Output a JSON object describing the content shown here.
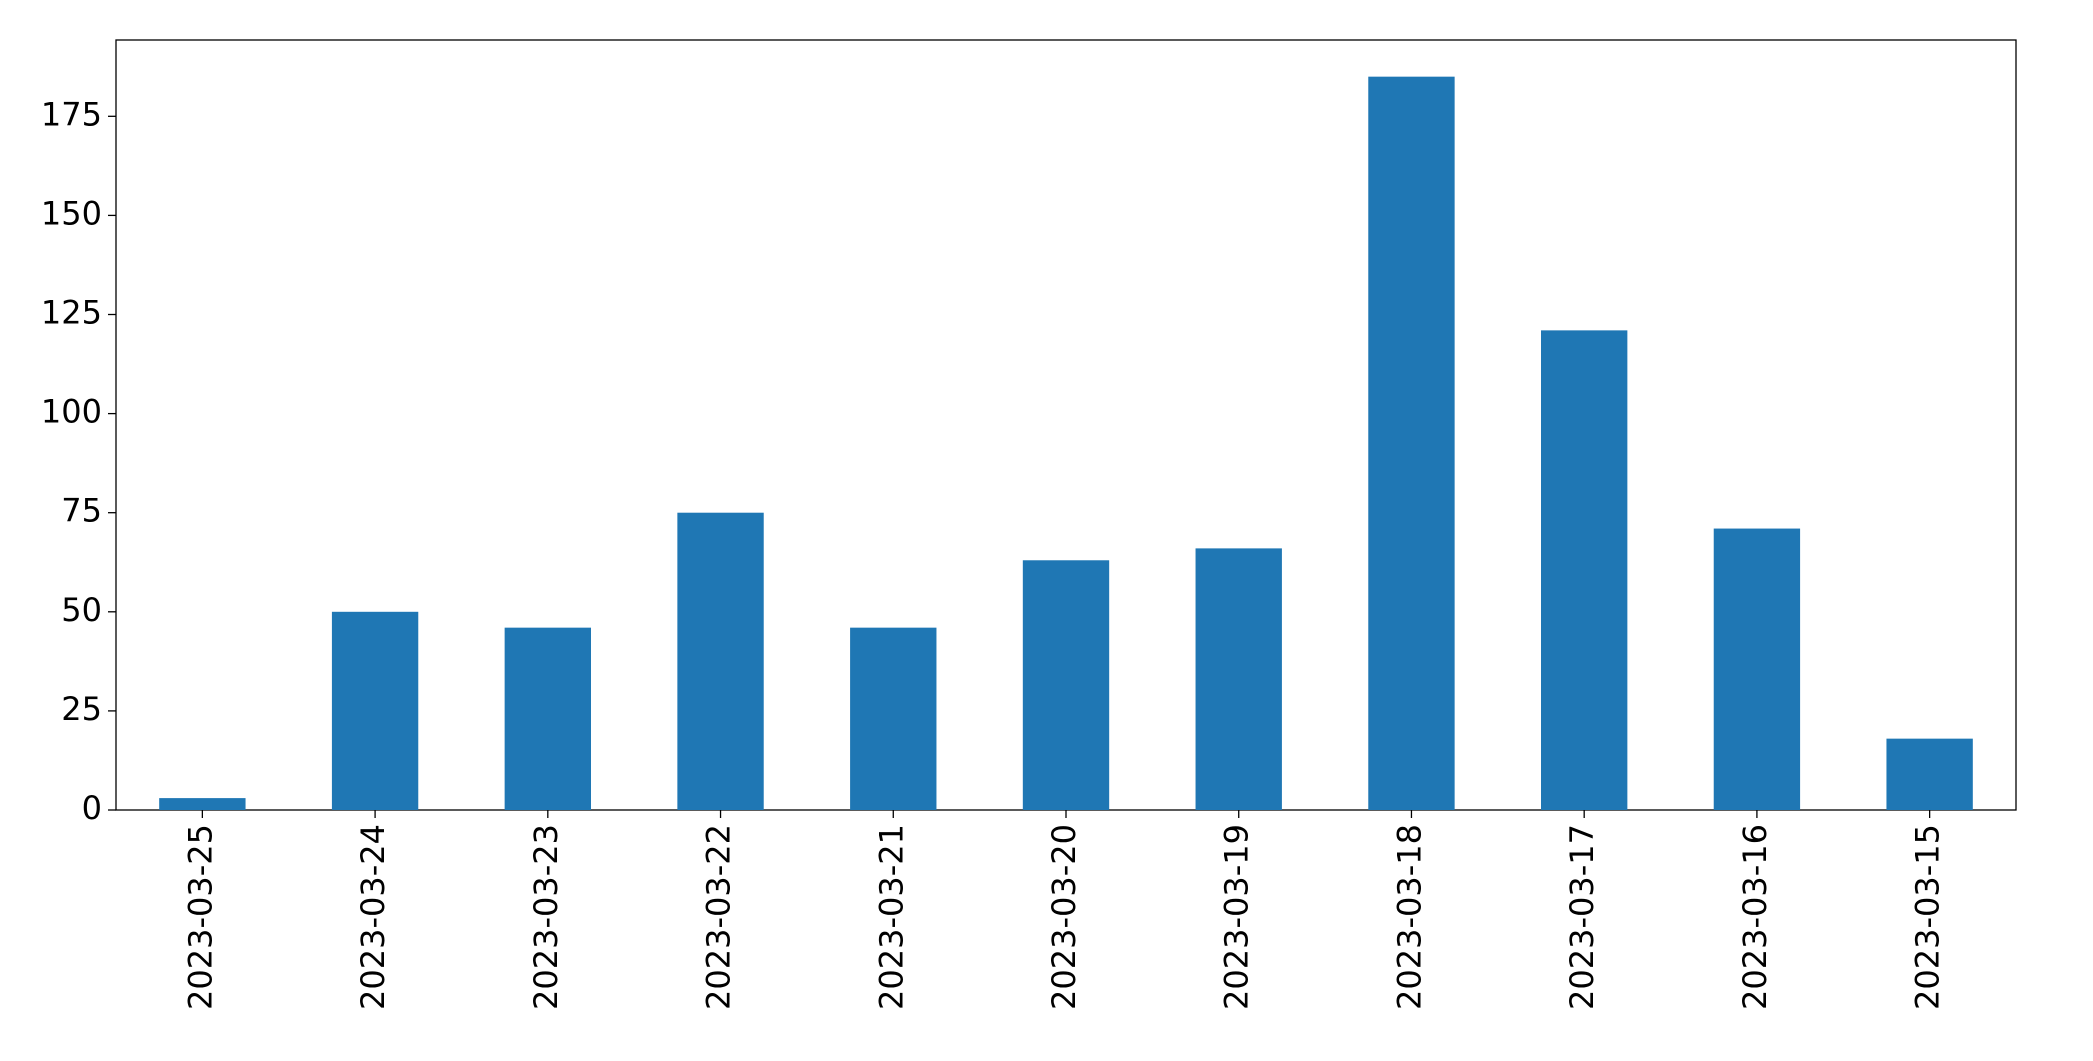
{
  "chart_data": {
    "type": "bar",
    "categories": [
      "2023-03-25",
      "2023-03-24",
      "2023-03-23",
      "2023-03-22",
      "2023-03-21",
      "2023-03-20",
      "2023-03-19",
      "2023-03-18",
      "2023-03-17",
      "2023-03-16",
      "2023-03-15"
    ],
    "values": [
      3,
      50,
      46,
      75,
      46,
      63,
      66,
      185,
      121,
      71,
      18
    ],
    "color": "#1f77b4",
    "ylim": [
      0,
      194.25
    ],
    "yticks": [
      0,
      25,
      50,
      75,
      100,
      125,
      150,
      175
    ],
    "grid": false
  }
}
